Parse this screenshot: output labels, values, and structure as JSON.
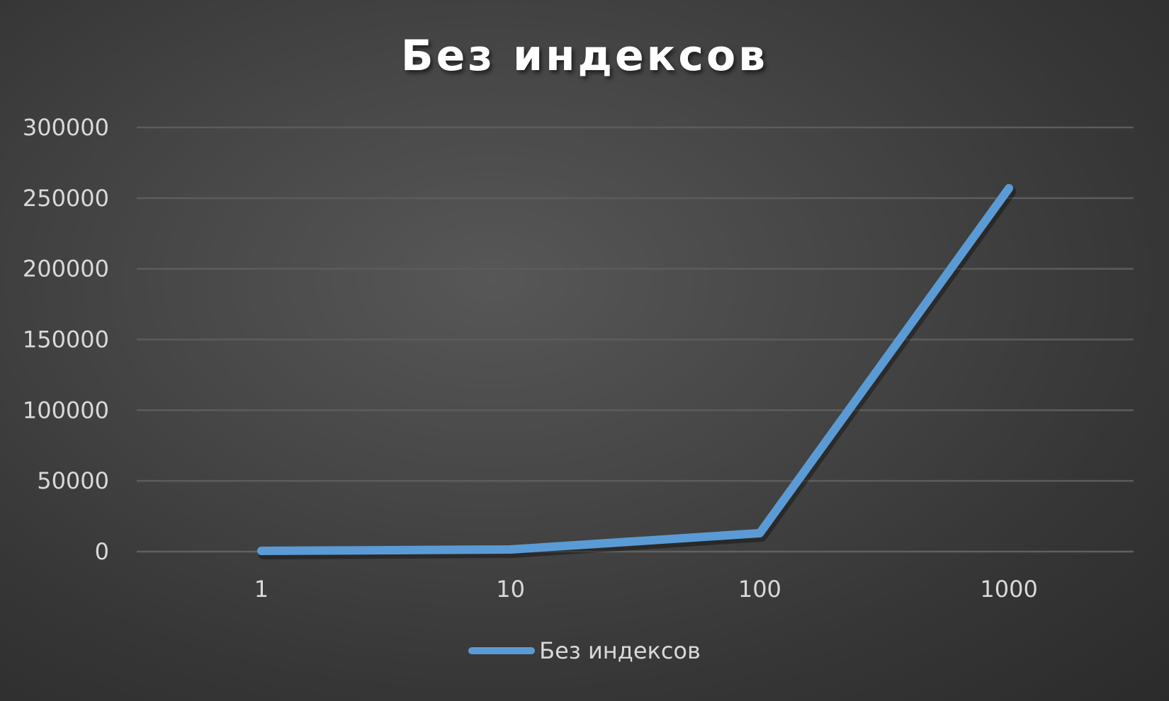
{
  "chart_data": {
    "type": "line",
    "title": "Без индексов",
    "categories": [
      "1",
      "10",
      "100",
      "1000"
    ],
    "series": [
      {
        "name": "Без индексов",
        "values": [
          500,
          1500,
          13000,
          257000
        ],
        "color": "#5b9bd5"
      }
    ],
    "ylim": [
      0,
      300000
    ],
    "yticks": [
      "0",
      "50000",
      "100000",
      "150000",
      "200000",
      "250000",
      "300000"
    ],
    "grid": true,
    "legend_position": "bottom"
  }
}
